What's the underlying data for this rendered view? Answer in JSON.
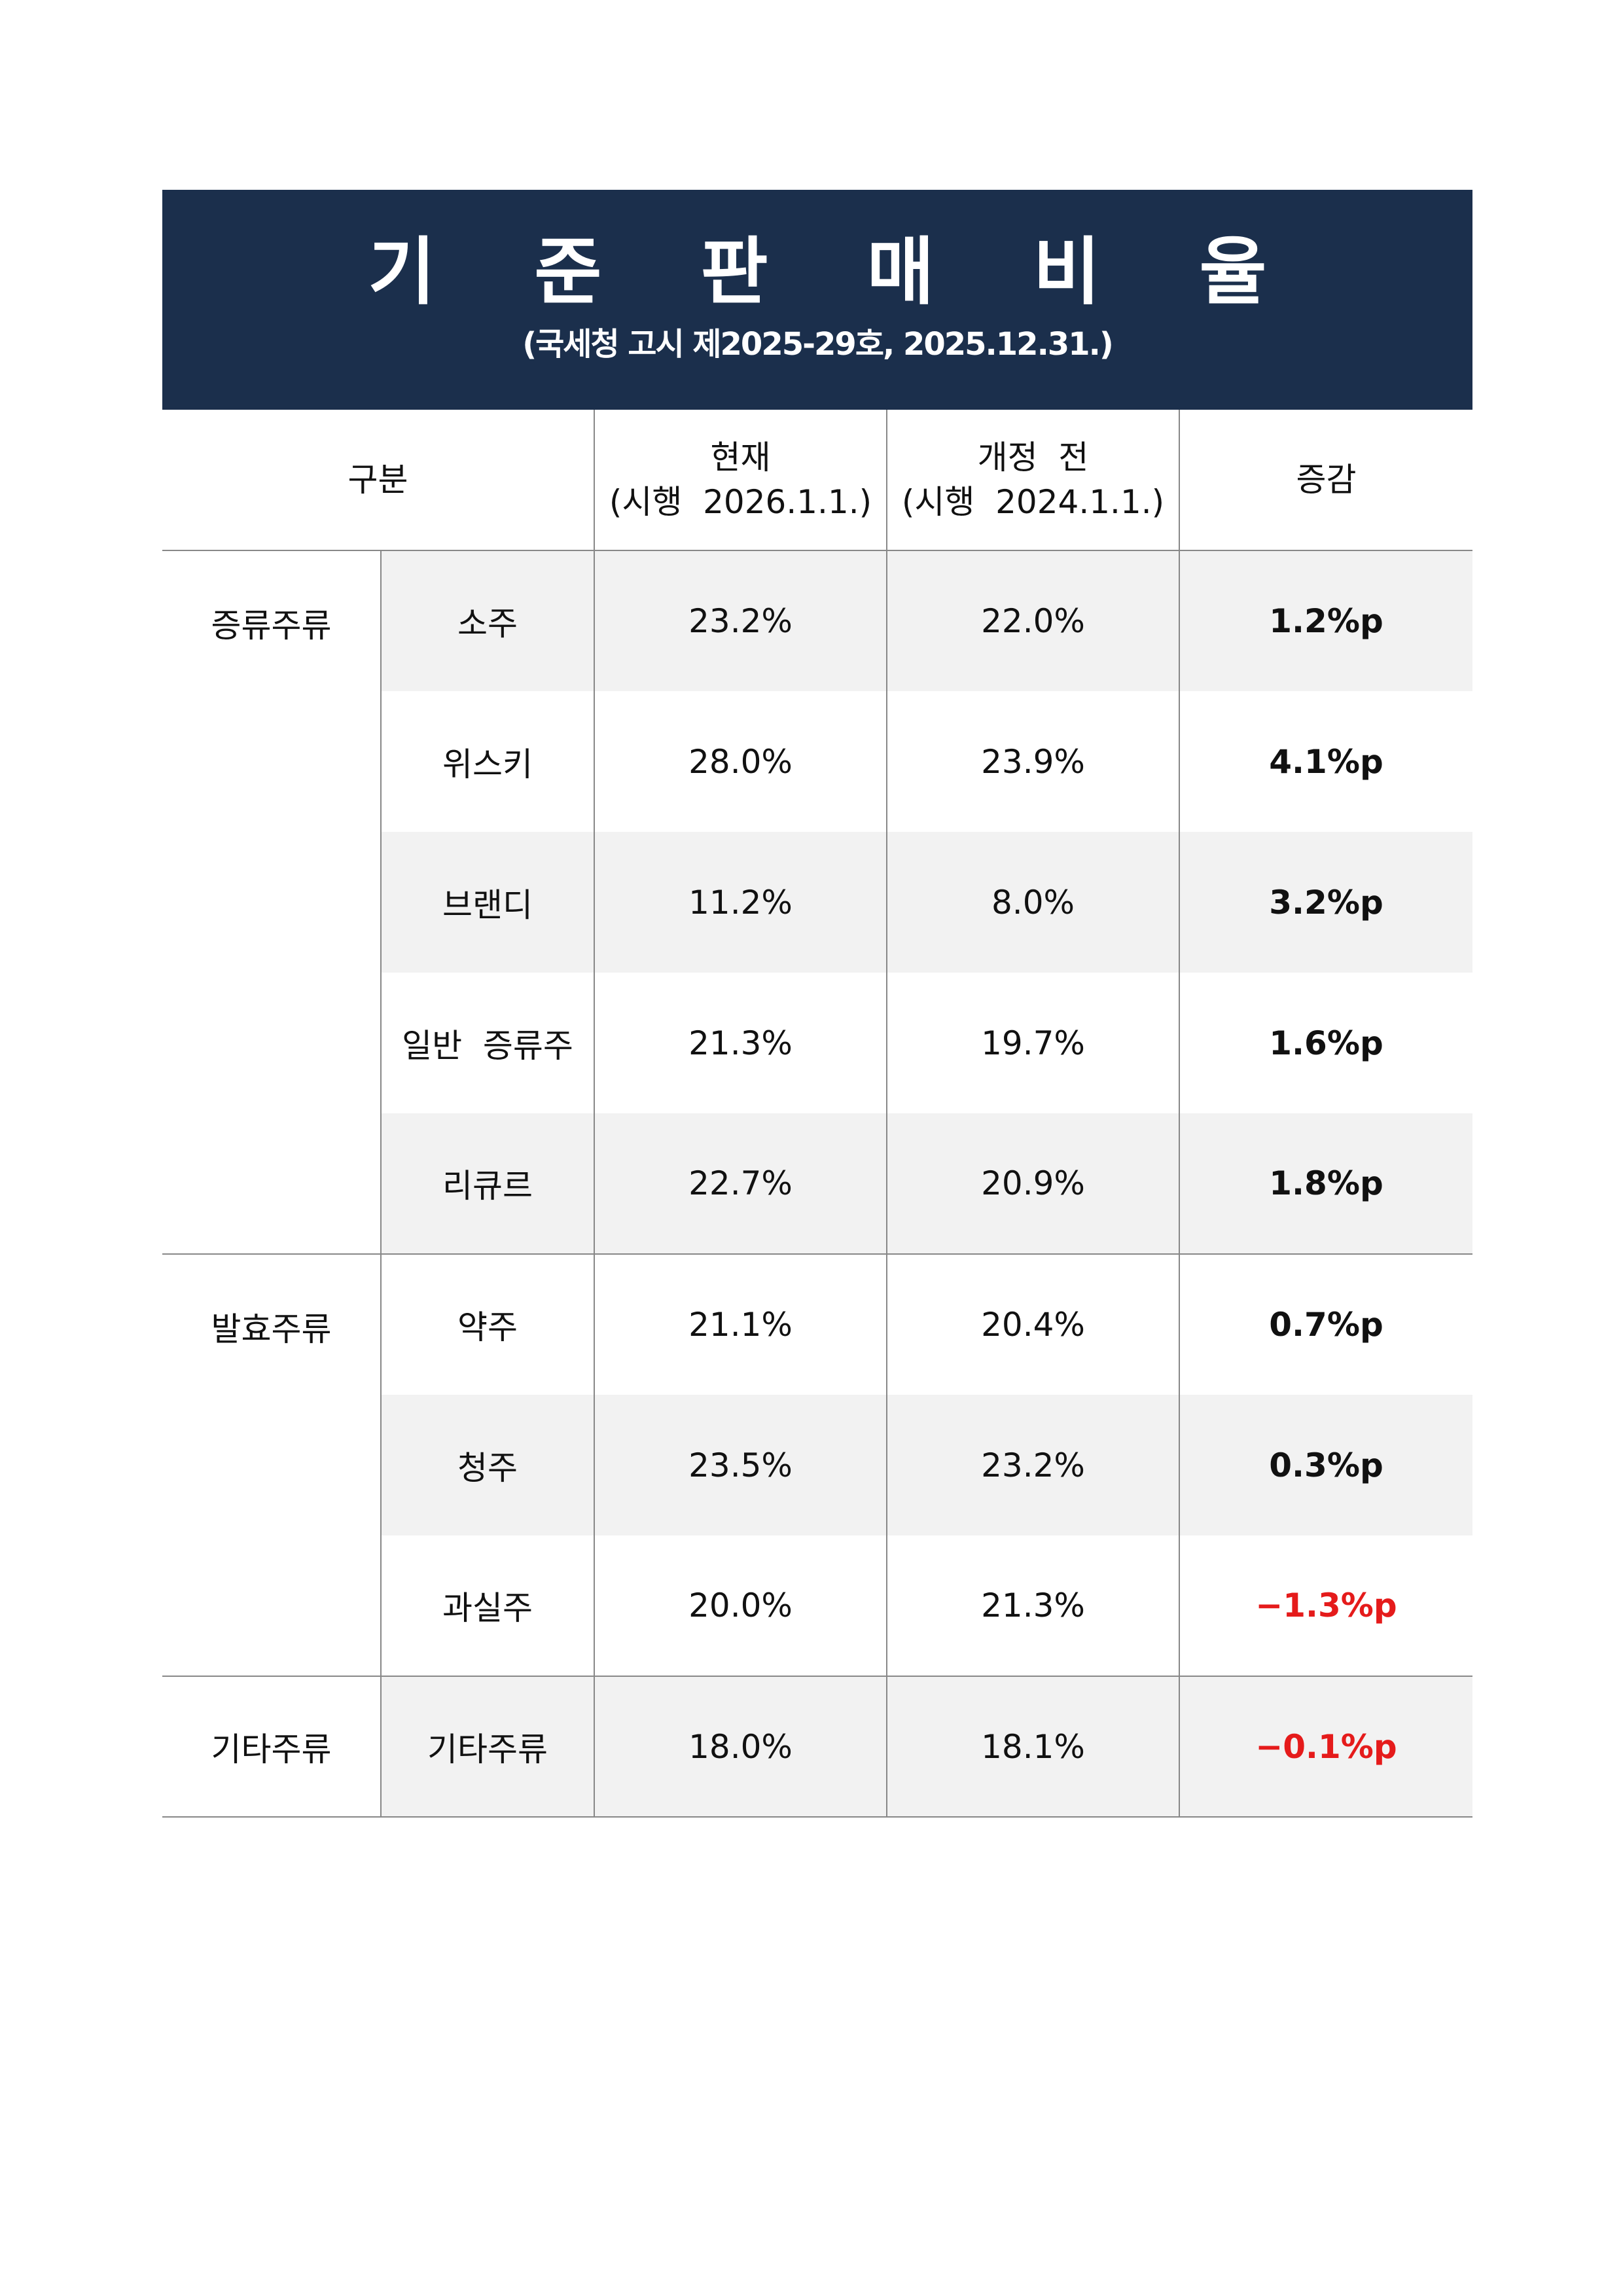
{
  "banner": {
    "title": "기 준 판 매 비 율",
    "subtitle": "(국세청 고시 제2025-29호, 2025.12.31.)"
  },
  "table": {
    "headers": {
      "category": "구분",
      "current_line1": "현재",
      "current_line2": "(시행  2026.1.1.)",
      "previous_line1": "개정  전",
      "previous_line2": "(시행  2024.1.1.)",
      "change": "증감"
    },
    "groups": [
      {
        "name": "증류주류",
        "rows": [
          {
            "item": "소주",
            "current": "23.2%",
            "previous": "22.0%",
            "change": "1.2%p"
          },
          {
            "item": "위스키",
            "current": "28.0%",
            "previous": "23.9%",
            "change": "4.1%p"
          },
          {
            "item": "브랜디",
            "current": "11.2%",
            "previous": "8.0%",
            "change": "3.2%p"
          },
          {
            "item": "일반  증류주",
            "current": "21.3%",
            "previous": "19.7%",
            "change": "1.6%p"
          },
          {
            "item": "리큐르",
            "current": "22.7%",
            "previous": "20.9%",
            "change": "1.8%p"
          }
        ]
      },
      {
        "name": "발효주류",
        "rows": [
          {
            "item": "약주",
            "current": "21.1%",
            "previous": "20.4%",
            "change": "0.7%p"
          },
          {
            "item": "청주",
            "current": "23.5%",
            "previous": "23.2%",
            "change": "0.3%p"
          },
          {
            "item": "과실주",
            "current": "20.0%",
            "previous": "21.3%",
            "change": "−1.3%p"
          }
        ]
      },
      {
        "name": "기타주류",
        "rows": [
          {
            "item": "기타주류",
            "current": "18.0%",
            "previous": "18.1%",
            "change": "−0.1%p"
          }
        ]
      }
    ]
  },
  "colors": {
    "banner_bg": "#1b2f4c",
    "row_shade": "#f2f2f2",
    "negative": "#e51b1b",
    "border": "#888888"
  }
}
